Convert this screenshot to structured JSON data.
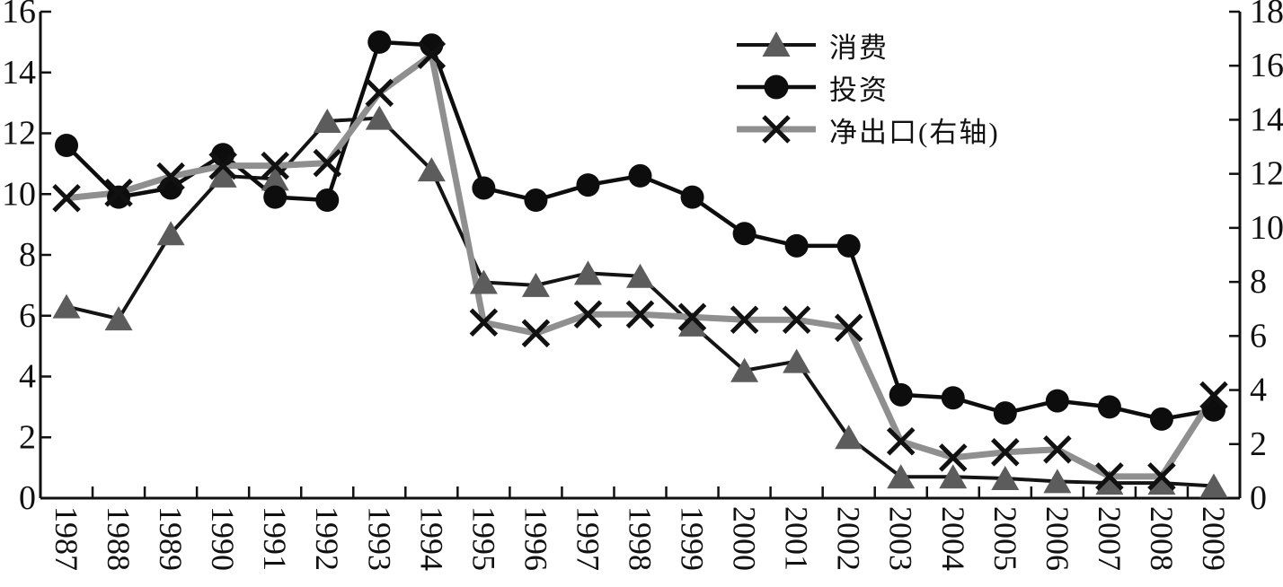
{
  "chart_data": {
    "type": "line",
    "title": "",
    "xlabel": "",
    "ylabel_left": "",
    "ylabel_right": "",
    "grid": false,
    "legend_position": "upper-right-inside",
    "x_categories": [
      "1987",
      "1988",
      "1989",
      "1990",
      "1991",
      "1992",
      "1993",
      "1994",
      "1995",
      "1996",
      "1997",
      "1998",
      "1999",
      "2000",
      "2001",
      "2002",
      "2003",
      "2004",
      "2005",
      "2006",
      "2007",
      "2008",
      "2009"
    ],
    "series": [
      {
        "name": "消费",
        "axis": "left",
        "marker": "triangle",
        "values": [
          6.3,
          5.9,
          8.7,
          10.6,
          10.5,
          12.4,
          12.5,
          10.8,
          7.1,
          7.0,
          7.4,
          7.3,
          5.7,
          4.2,
          4.5,
          2.0,
          0.7,
          0.7,
          0.65,
          0.55,
          0.5,
          0.5,
          0.4
        ]
      },
      {
        "name": "投资",
        "axis": "left",
        "marker": "circle",
        "values": [
          11.6,
          9.9,
          10.2,
          11.3,
          9.9,
          9.8,
          15.0,
          14.9,
          10.2,
          9.8,
          10.3,
          10.6,
          9.9,
          8.7,
          8.3,
          8.3,
          3.4,
          3.3,
          2.8,
          3.2,
          3.0,
          2.6,
          2.9
        ]
      },
      {
        "name": "净出口(右轴)",
        "axis": "right",
        "marker": "x",
        "values": [
          11.1,
          11.3,
          11.9,
          12.3,
          12.3,
          12.4,
          15.0,
          16.4,
          6.5,
          6.1,
          6.8,
          6.8,
          6.7,
          6.6,
          6.6,
          6.3,
          2.1,
          1.5,
          1.7,
          1.8,
          0.8,
          0.8,
          3.8
        ]
      }
    ],
    "left_axis": {
      "min": 0,
      "max": 16,
      "ticks": [
        0,
        2,
        4,
        6,
        8,
        10,
        12,
        14,
        16
      ]
    },
    "right_axis": {
      "min": 0,
      "max": 18,
      "ticks": [
        0,
        2,
        4,
        6,
        8,
        10,
        12,
        14,
        16,
        18
      ]
    }
  },
  "colors": {
    "axis_black": "#111111",
    "line_black": "#141414",
    "triangle_gray": "#5c5c5c",
    "net_line_gray": "#8f8f8f",
    "marker_black": "#0d0d0d"
  }
}
